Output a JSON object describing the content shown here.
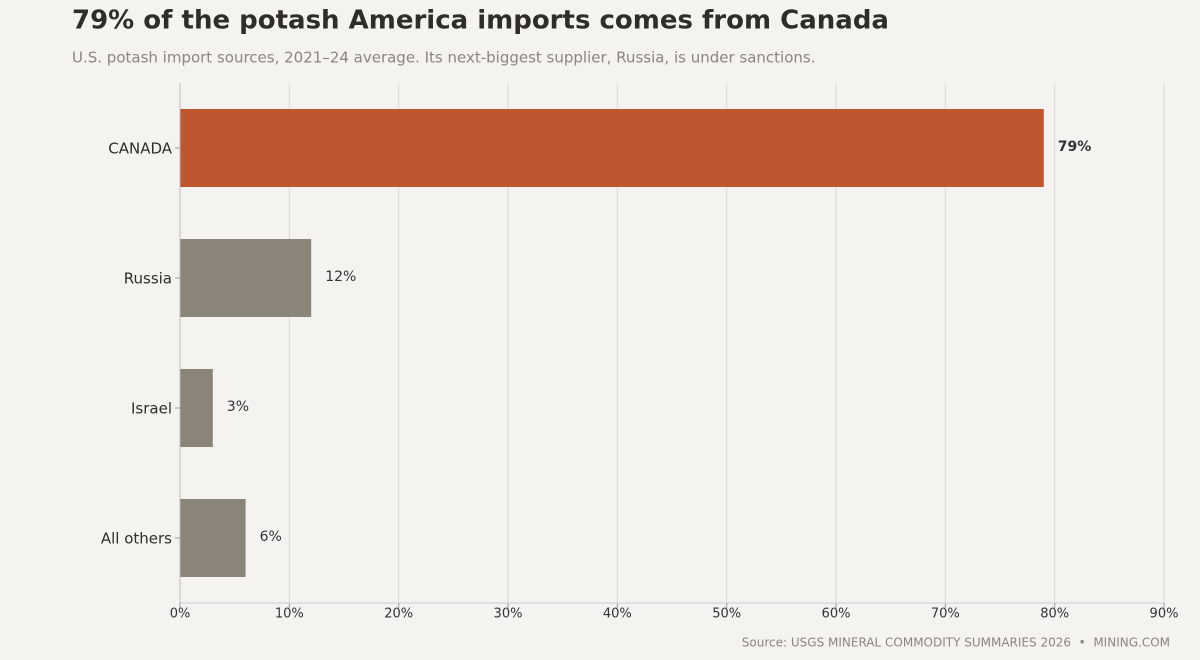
{
  "chart_data": {
    "type": "bar",
    "orientation": "horizontal",
    "title": "79% of the potash America imports comes from Canada",
    "subtitle": "U.S. potash import sources, 2021–24 average. Its next-biggest supplier, Russia, is under sanctions.",
    "source": "Source: USGS MINERAL COMMODITY SUMMARIES 2026  •  MINING.COM",
    "categories": [
      "CANADA",
      "Russia",
      "Israel",
      "All others"
    ],
    "values": [
      79,
      12,
      3,
      6
    ],
    "value_labels": [
      "79%",
      "12%",
      "3%",
      "6%"
    ],
    "colors": [
      "#c0562f",
      "#8b8478",
      "#8b8478",
      "#8b8478"
    ],
    "xlim": [
      0,
      90
    ],
    "xticks": [
      {
        "value": 0,
        "label": "0%"
      },
      {
        "value": 10,
        "label": "10%"
      },
      {
        "value": 20,
        "label": "20%"
      },
      {
        "value": 30,
        "label": "30%"
      },
      {
        "value": 40,
        "label": "40%"
      },
      {
        "value": 50,
        "label": "50%"
      },
      {
        "value": 60,
        "label": "60%"
      },
      {
        "value": 70,
        "label": "70%"
      },
      {
        "value": 80,
        "label": "80%"
      },
      {
        "value": 90,
        "label": "90%"
      }
    ],
    "grid": true
  }
}
